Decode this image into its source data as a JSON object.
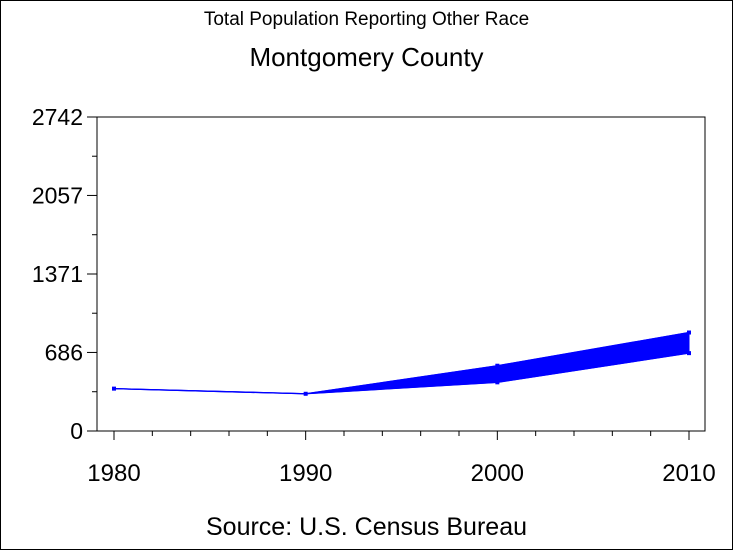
{
  "header": {
    "title": "Total Population Reporting Other Race",
    "subtitle": "Montgomery County"
  },
  "footer": {
    "source": "Source: U.S. Census Bureau"
  },
  "chart_data": {
    "type": "line",
    "title": "Total Population Reporting Other Race",
    "subtitle": "Montgomery County",
    "xlabel": "",
    "ylabel": "",
    "x_ticks": [
      1980,
      1990,
      2000,
      2010
    ],
    "y_ticks": [
      0,
      686,
      1371,
      2057,
      2742
    ],
    "xlim": [
      1980,
      2010
    ],
    "ylim": [
      0,
      2742
    ],
    "grid": false,
    "legend": "none",
    "series_color": "#0000ff",
    "series": [
      {
        "x": [
          1980,
          1990,
          2000,
          2010
        ],
        "lower": [
          370,
          325,
          425,
          680
        ],
        "upper": [
          370,
          325,
          570,
          860
        ]
      }
    ]
  }
}
